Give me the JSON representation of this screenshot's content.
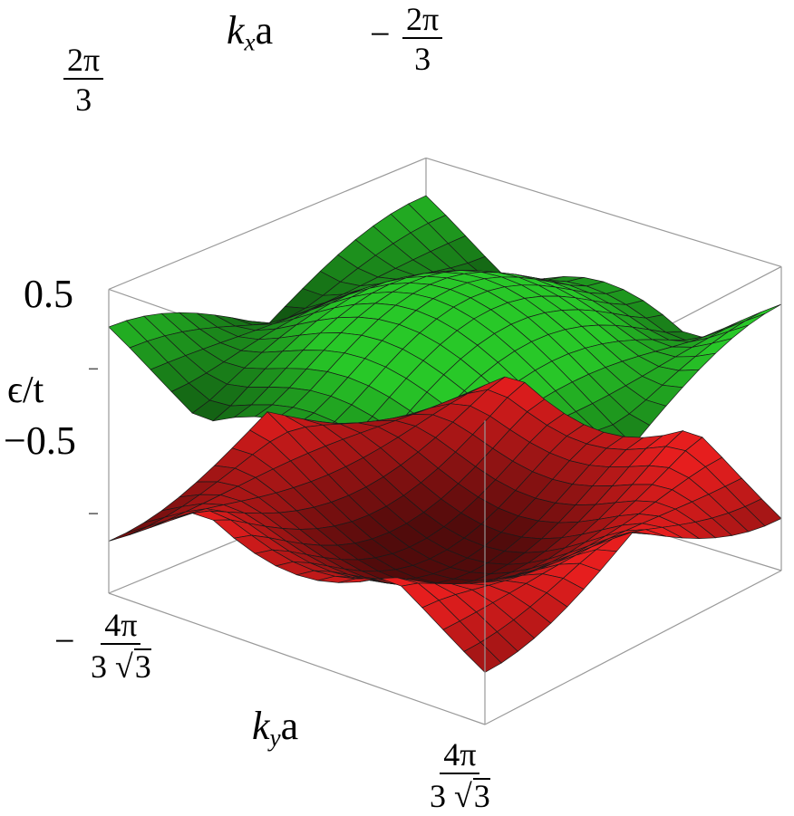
{
  "chart_data": {
    "type": "surface3d",
    "zlabel": "ϵ/t",
    "xlabel": "k_x a",
    "ylabel": "k_y a",
    "x_range_label": {
      "minus": "−",
      "num": "2π",
      "den": "3"
    },
    "x_range_label_pos": {
      "num": "2π",
      "den": "3"
    },
    "y_range_label": {
      "minus": "−",
      "num": "4π",
      "den_prefix": "3",
      "den_sqrt": "3"
    },
    "y_range_label_pos": {
      "num": "4π",
      "den_prefix": "3",
      "den_sqrt": "3"
    },
    "z_ticks": [
      "0.5",
      "−0.5"
    ],
    "x_range": [
      "-2π/3",
      "2π/3"
    ],
    "y_range": [
      "-4π/(3√3)",
      "4π/(3√3)"
    ],
    "series": [
      {
        "name": "",
        "band": "upper",
        "color": "#1aa11a"
      },
      {
        "name": "",
        "band": "lower",
        "color": "#d01818"
      }
    ]
  },
  "labels": {
    "kx_k": "k",
    "kx_sub": "x",
    "kx_a": "a",
    "ky_k": "k",
    "ky_sub": "y",
    "ky_a": "a",
    "z_axis": "ϵ/t",
    "tick_pos": "0.5",
    "tick_neg": "−0.5",
    "minus": "−",
    "two_pi": "2π",
    "three": "3",
    "four_pi": "4π",
    "sqrt_sym": "√",
    "sqrt_arg": "3"
  }
}
